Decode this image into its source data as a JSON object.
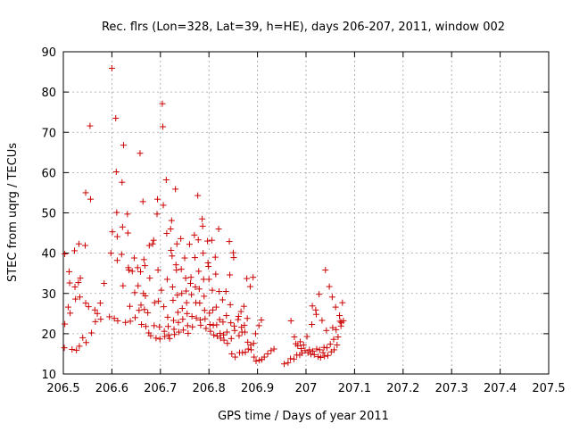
{
  "chart_data": {
    "type": "scatter",
    "title": "Rec. flrs (Lon=328, Lat=39, h=HE), days 206-207, 2011, window 002",
    "xlabel": "GPS time / Days of year 2011",
    "ylabel": "STEC from uqrg / TECUs",
    "xlim": [
      206.5,
      207.5
    ],
    "ylim": [
      10,
      90
    ],
    "x_ticks": [
      206.5,
      206.6,
      206.7,
      206.8,
      206.9,
      207.0,
      207.1,
      207.2,
      207.3,
      207.4,
      207.5
    ],
    "x_tick_labels": [
      "206.5",
      "206.6",
      "206.7",
      "206.8",
      "206.9",
      "207",
      "207.1",
      "207.2",
      "207.3",
      "207.4",
      "207.5"
    ],
    "y_ticks": [
      10,
      20,
      30,
      40,
      50,
      60,
      70,
      80,
      90
    ],
    "y_tick_labels": [
      "10",
      "20",
      "30",
      "40",
      "50",
      "60",
      "70",
      "80",
      "90"
    ],
    "grid": true,
    "marker": "+",
    "marker_color": "#cc0000",
    "series": [
      {
        "name": "STEC",
        "points": [
          [
            206.502,
            16.5
          ],
          [
            206.503,
            22.4
          ],
          [
            206.503,
            39.8
          ],
          [
            206.51,
            26.6
          ],
          [
            206.512,
            35.4
          ],
          [
            206.513,
            32.6
          ],
          [
            206.514,
            25.1
          ],
          [
            206.518,
            16.1
          ],
          [
            206.523,
            40.6
          ],
          [
            206.524,
            31.6
          ],
          [
            206.525,
            28.6
          ],
          [
            206.527,
            15.9
          ],
          [
            206.531,
            32.7
          ],
          [
            206.532,
            42.3
          ],
          [
            206.533,
            16.9
          ],
          [
            206.534,
            29.1
          ],
          [
            206.535,
            33.8
          ],
          [
            206.54,
            19.0
          ],
          [
            206.545,
            41.9
          ],
          [
            206.546,
            55.0
          ],
          [
            206.546,
            27.6
          ],
          [
            206.547,
            17.8
          ],
          [
            206.552,
            26.7
          ],
          [
            206.555,
            71.6
          ],
          [
            206.556,
            53.4
          ],
          [
            206.558,
            20.2
          ],
          [
            206.565,
            25.9
          ],
          [
            206.566,
            23.0
          ],
          [
            206.57,
            25.0
          ],
          [
            206.576,
            27.6
          ],
          [
            206.577,
            23.6
          ],
          [
            206.584,
            32.5
          ],
          [
            206.595,
            24.2
          ],
          [
            206.598,
            40.0
          ],
          [
            206.6,
            85.9
          ],
          [
            206.601,
            45.3
          ],
          [
            206.605,
            23.8
          ],
          [
            206.608,
            73.5
          ],
          [
            206.609,
            60.2
          ],
          [
            206.61,
            50.1
          ],
          [
            206.611,
            38.2
          ],
          [
            206.611,
            44.1
          ],
          [
            206.612,
            23.2
          ],
          [
            206.62,
            39.7
          ],
          [
            206.621,
            57.6
          ],
          [
            206.622,
            46.5
          ],
          [
            206.623,
            31.9
          ],
          [
            206.624,
            66.8
          ],
          [
            206.628,
            22.8
          ],
          [
            206.632,
            49.7
          ],
          [
            206.633,
            45.0
          ],
          [
            206.634,
            36.4
          ],
          [
            206.635,
            35.8
          ],
          [
            206.637,
            26.8
          ],
          [
            206.638,
            23.1
          ],
          [
            206.642,
            35.5
          ],
          [
            206.646,
            38.8
          ],
          [
            206.647,
            30.2
          ],
          [
            206.648,
            24.0
          ],
          [
            206.653,
            36.4
          ],
          [
            206.654,
            31.9
          ],
          [
            206.656,
            25.8
          ],
          [
            206.658,
            64.8
          ],
          [
            206.659,
            35.4
          ],
          [
            206.66,
            27.1
          ],
          [
            206.661,
            22.3
          ],
          [
            206.664,
            52.8
          ],
          [
            206.665,
            30.0
          ],
          [
            206.666,
            38.4
          ],
          [
            206.667,
            26.0
          ],
          [
            206.668,
            36.9
          ],
          [
            206.669,
            29.4
          ],
          [
            206.67,
            21.8
          ],
          [
            206.674,
            25.2
          ],
          [
            206.676,
            20.2
          ],
          [
            206.677,
            41.9
          ],
          [
            206.678,
            33.8
          ],
          [
            206.68,
            19.5
          ],
          [
            206.684,
            42.3
          ],
          [
            206.686,
            43.2
          ],
          [
            206.687,
            22.0
          ],
          [
            206.688,
            27.7
          ],
          [
            206.691,
            18.9
          ],
          [
            206.693,
            49.7
          ],
          [
            206.694,
            53.4
          ],
          [
            206.695,
            35.8
          ],
          [
            206.696,
            28.1
          ],
          [
            206.698,
            21.7
          ],
          [
            206.699,
            18.7
          ],
          [
            206.702,
            30.8
          ],
          [
            206.704,
            77.1
          ],
          [
            206.705,
            71.4
          ],
          [
            206.706,
            51.9
          ],
          [
            206.707,
            26.7
          ],
          [
            206.708,
            20.6
          ],
          [
            206.709,
            19.3
          ],
          [
            206.712,
            58.2
          ],
          [
            206.713,
            44.9
          ],
          [
            206.714,
            33.5
          ],
          [
            206.715,
            24.1
          ],
          [
            206.716,
            21.8
          ],
          [
            206.717,
            19.7
          ],
          [
            206.719,
            18.8
          ],
          [
            206.721,
            46.0
          ],
          [
            206.722,
            40.7
          ],
          [
            206.723,
            48.1
          ],
          [
            206.724,
            39.3
          ],
          [
            206.725,
            31.6
          ],
          [
            206.726,
            28.3
          ],
          [
            206.727,
            23.3
          ],
          [
            206.728,
            21.1
          ],
          [
            206.729,
            19.8
          ],
          [
            206.731,
            55.9
          ],
          [
            206.732,
            37.1
          ],
          [
            206.733,
            35.8
          ],
          [
            206.734,
            42.3
          ],
          [
            206.735,
            29.6
          ],
          [
            206.736,
            25.3
          ],
          [
            206.737,
            22.8
          ],
          [
            206.738,
            20.4
          ],
          [
            206.742,
            43.6
          ],
          [
            206.743,
            36.0
          ],
          [
            206.744,
            30.0
          ],
          [
            206.745,
            26.3
          ],
          [
            206.746,
            23.6
          ],
          [
            206.747,
            20.9
          ],
          [
            206.75,
            38.8
          ],
          [
            206.752,
            33.8
          ],
          [
            206.753,
            30.6
          ],
          [
            206.754,
            27.7
          ],
          [
            206.755,
            25.0
          ],
          [
            206.756,
            22.0
          ],
          [
            206.757,
            20.1
          ],
          [
            206.76,
            42.2
          ],
          [
            206.762,
            32.5
          ],
          [
            206.763,
            34.0
          ],
          [
            206.764,
            29.7
          ],
          [
            206.765,
            24.3
          ],
          [
            206.766,
            21.7
          ],
          [
            206.77,
            44.5
          ],
          [
            206.771,
            38.9
          ],
          [
            206.772,
            31.6
          ],
          [
            206.773,
            27.7
          ],
          [
            206.774,
            23.9
          ],
          [
            206.777,
            54.3
          ],
          [
            206.778,
            43.3
          ],
          [
            206.779,
            35.5
          ],
          [
            206.78,
            31.1
          ],
          [
            206.781,
            27.6
          ],
          [
            206.782,
            23.4
          ],
          [
            206.783,
            22.1
          ],
          [
            206.786,
            48.5
          ],
          [
            206.787,
            46.7
          ],
          [
            206.788,
            40.0
          ],
          [
            206.789,
            33.5
          ],
          [
            206.79,
            29.3
          ],
          [
            206.791,
            25.8
          ],
          [
            206.792,
            23.7
          ],
          [
            206.794,
            21.3
          ],
          [
            206.797,
            43.0
          ],
          [
            206.798,
            37.6
          ],
          [
            206.799,
            36.7
          ],
          [
            206.8,
            33.5
          ],
          [
            206.801,
            25.1
          ],
          [
            206.802,
            22.3
          ],
          [
            206.803,
            20.6
          ],
          [
            206.806,
            43.2
          ],
          [
            206.807,
            30.8
          ],
          [
            206.808,
            25.9
          ],
          [
            206.809,
            22.1
          ],
          [
            206.81,
            19.7
          ],
          [
            206.813,
            39.0
          ],
          [
            206.814,
            34.8
          ],
          [
            206.815,
            26.6
          ],
          [
            206.816,
            22.2
          ],
          [
            206.817,
            19.4
          ],
          [
            206.82,
            46.0
          ],
          [
            206.821,
            30.5
          ],
          [
            206.822,
            23.5
          ],
          [
            206.823,
            20.1
          ],
          [
            206.824,
            18.9
          ],
          [
            206.828,
            28.4
          ],
          [
            206.829,
            22.9
          ],
          [
            206.83,
            19.7
          ],
          [
            206.831,
            18.4
          ],
          [
            206.835,
            30.5
          ],
          [
            206.836,
            24.5
          ],
          [
            206.837,
            20.4
          ],
          [
            206.838,
            17.6
          ],
          [
            206.842,
            42.9
          ],
          [
            206.843,
            34.6
          ],
          [
            206.844,
            27.2
          ],
          [
            206.845,
            22.7
          ],
          [
            206.846,
            18.8
          ],
          [
            206.847,
            15.0
          ],
          [
            206.85,
            40.1
          ],
          [
            206.851,
            38.9
          ],
          [
            206.852,
            21.9
          ],
          [
            206.853,
            20.8
          ],
          [
            206.854,
            14.2
          ],
          [
            206.86,
            23.5
          ],
          [
            206.861,
            24.3
          ],
          [
            206.862,
            19.5
          ],
          [
            206.863,
            15.3
          ],
          [
            206.866,
            25.5
          ],
          [
            206.867,
            21.6
          ],
          [
            206.868,
            20.4
          ],
          [
            206.869,
            15.3
          ],
          [
            206.872,
            26.8
          ],
          [
            206.873,
            22.1
          ],
          [
            206.874,
            20.4
          ],
          [
            206.875,
            15.4
          ],
          [
            206.878,
            33.7
          ],
          [
            206.879,
            23.8
          ],
          [
            206.88,
            17.9
          ],
          [
            206.881,
            16.2
          ],
          [
            206.885,
            31.7
          ],
          [
            206.886,
            17.2
          ],
          [
            206.887,
            16.0
          ],
          [
            206.891,
            34.0
          ],
          [
            206.892,
            17.6
          ],
          [
            206.893,
            14.2
          ],
          [
            206.896,
            20.0
          ],
          [
            206.897,
            13.2
          ],
          [
            206.903,
            22.0
          ],
          [
            206.904,
            13.4
          ],
          [
            206.908,
            23.4
          ],
          [
            206.909,
            13.6
          ],
          [
            206.914,
            14.2
          ],
          [
            206.921,
            15.0
          ],
          [
            206.928,
            15.8
          ],
          [
            206.934,
            16.2
          ],
          [
            206.955,
            12.5
          ],
          [
            206.963,
            12.8
          ],
          [
            206.968,
            13.8
          ],
          [
            206.969,
            23.2
          ],
          [
            206.975,
            13.7
          ],
          [
            206.976,
            19.2
          ],
          [
            206.979,
            17.5
          ],
          [
            206.981,
            14.7
          ],
          [
            206.983,
            17.0
          ],
          [
            206.987,
            14.7
          ],
          [
            206.988,
            18.0
          ],
          [
            206.99,
            16.3
          ],
          [
            206.992,
            15.2
          ],
          [
            206.995,
            17.2
          ],
          [
            206.998,
            15.8
          ],
          [
            207.002,
            19.3
          ],
          [
            207.004,
            15.3
          ],
          [
            207.007,
            16.0
          ],
          [
            207.01,
            14.9
          ],
          [
            207.012,
            22.3
          ],
          [
            207.013,
            26.9
          ],
          [
            207.014,
            15.7
          ],
          [
            207.017,
            14.8
          ],
          [
            207.02,
            25.9
          ],
          [
            207.021,
            24.8
          ],
          [
            207.022,
            16.2
          ],
          [
            207.025,
            14.3
          ],
          [
            207.027,
            29.8
          ],
          [
            207.028,
            16.0
          ],
          [
            207.03,
            14.1
          ],
          [
            207.033,
            23.3
          ],
          [
            207.035,
            15.3
          ],
          [
            207.037,
            16.6
          ],
          [
            207.038,
            14.4
          ],
          [
            207.04,
            35.8
          ],
          [
            207.042,
            20.8
          ],
          [
            207.043,
            16.5
          ],
          [
            207.045,
            14.6
          ],
          [
            207.048,
            31.7
          ],
          [
            207.05,
            17.4
          ],
          [
            207.052,
            15.5
          ],
          [
            207.054,
            29.1
          ],
          [
            207.055,
            21.5
          ],
          [
            207.057,
            18.6
          ],
          [
            207.058,
            16.0
          ],
          [
            207.061,
            26.6
          ],
          [
            207.062,
            21.0
          ],
          [
            207.064,
            17.2
          ],
          [
            207.066,
            19.2
          ],
          [
            207.069,
            24.5
          ],
          [
            207.07,
            23.1
          ],
          [
            207.072,
            21.9
          ],
          [
            207.073,
            22.8
          ],
          [
            207.075,
            27.7
          ],
          [
            207.077,
            23.2
          ]
        ]
      }
    ]
  }
}
